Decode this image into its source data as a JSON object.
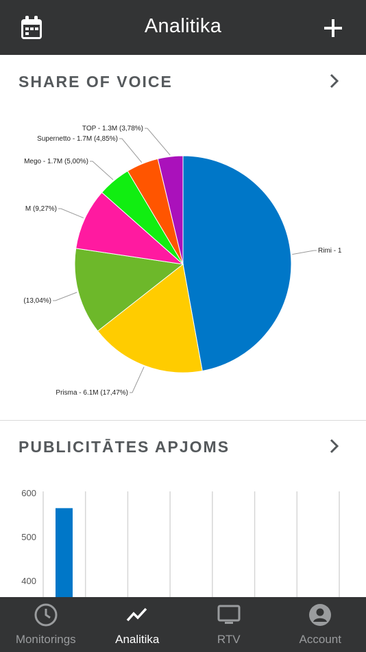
{
  "header": {
    "title": "Analitika",
    "left_icon": "calendar-icon",
    "right_icon": "plus-icon"
  },
  "share_of_voice": {
    "title": "SHARE OF VOICE",
    "chevron_icon": "chevron-right-icon"
  },
  "publicity": {
    "title": "PUBLICITĀTES APJOMS",
    "chevron_icon": "chevron-right-icon"
  },
  "chart_data": [
    {
      "type": "pie",
      "title": "",
      "slices": [
        {
          "label": "Rimi - 1",
          "value": 47.64,
          "color": "#0077c8"
        },
        {
          "label": "Prisma - 6.1M (17,47%)",
          "value": 17.47,
          "color": "#ffcc00"
        },
        {
          "label": "(13,04%)",
          "value": 13.04,
          "color": "#6db82a"
        },
        {
          "label": "M (9,27%)",
          "value": 9.27,
          "color": "#ff1aa0"
        },
        {
          "label": "Mego - 1.7M (5,00%)",
          "value": 5.0,
          "color": "#11ee11"
        },
        {
          "label": "Supernetto - 1.7M (4,85%)",
          "value": 4.85,
          "color": "#ff5500"
        },
        {
          "label": "TOP - 1.3M (3,78%)",
          "value": 3.78,
          "color": "#aa11bb"
        }
      ]
    },
    {
      "type": "bar",
      "title": "",
      "xlabel": "",
      "ylabel": "",
      "categories": [
        "",
        "",
        "",
        "",
        "",
        "",
        ""
      ],
      "values": [
        565,
        null,
        null,
        null,
        null,
        null,
        null
      ],
      "yticks": [
        400,
        500,
        600
      ],
      "ylim": [
        380,
        620
      ],
      "grid": true,
      "bar_color": "#0077c8"
    }
  ],
  "tabbar": {
    "items": [
      {
        "label": "Monitorings",
        "icon": "clock-icon",
        "active": false
      },
      {
        "label": "Analitika",
        "icon": "trend-icon",
        "active": true
      },
      {
        "label": "RTV",
        "icon": "tv-icon",
        "active": false
      },
      {
        "label": "Account",
        "icon": "account-icon",
        "active": false
      }
    ]
  }
}
